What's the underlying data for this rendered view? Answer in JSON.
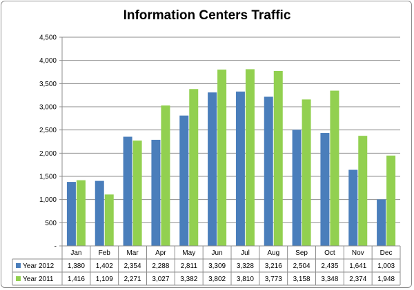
{
  "chart_data": {
    "type": "bar",
    "title": "Information Centers Traffic",
    "categories": [
      "Jan",
      "Feb",
      "Mar",
      "Apr",
      "May",
      "Jun",
      "Jul",
      "Aug",
      "Sep",
      "Oct",
      "Nov",
      "Dec"
    ],
    "series": [
      {
        "name": "Year 2012",
        "color": "#4a7ebb",
        "values": [
          1380,
          1402,
          2354,
          2288,
          2811,
          3309,
          3328,
          3216,
          2504,
          2435,
          1641,
          1003
        ],
        "labels": [
          "1,380",
          "1,402",
          "2,354",
          "2,288",
          "2,811",
          "3,309",
          "3,328",
          "3,216",
          "2,504",
          "2,435",
          "1,641",
          "1,003"
        ]
      },
      {
        "name": "Year 2011",
        "color": "#92d050",
        "values": [
          1416,
          1109,
          2271,
          3027,
          3382,
          3802,
          3810,
          3773,
          3158,
          3348,
          2374,
          1948
        ],
        "labels": [
          "1,416",
          "1,109",
          "2,271",
          "3,027",
          "3,382",
          "3,802",
          "3,810",
          "3,773",
          "3,158",
          "3,348",
          "2,374",
          "1,948"
        ]
      }
    ],
    "ylim": [
      0,
      4500
    ],
    "yticks": [
      0,
      500,
      1000,
      1500,
      2000,
      2500,
      3000,
      3500,
      4000,
      4500
    ],
    "ytick_labels": [
      "-",
      "500",
      "1,000",
      "1,500",
      "2,000",
      "2,500",
      "3,000",
      "3,500",
      "4,000",
      "4,500"
    ],
    "grid": true,
    "legend": "data-table",
    "xlabel": "",
    "ylabel": ""
  }
}
